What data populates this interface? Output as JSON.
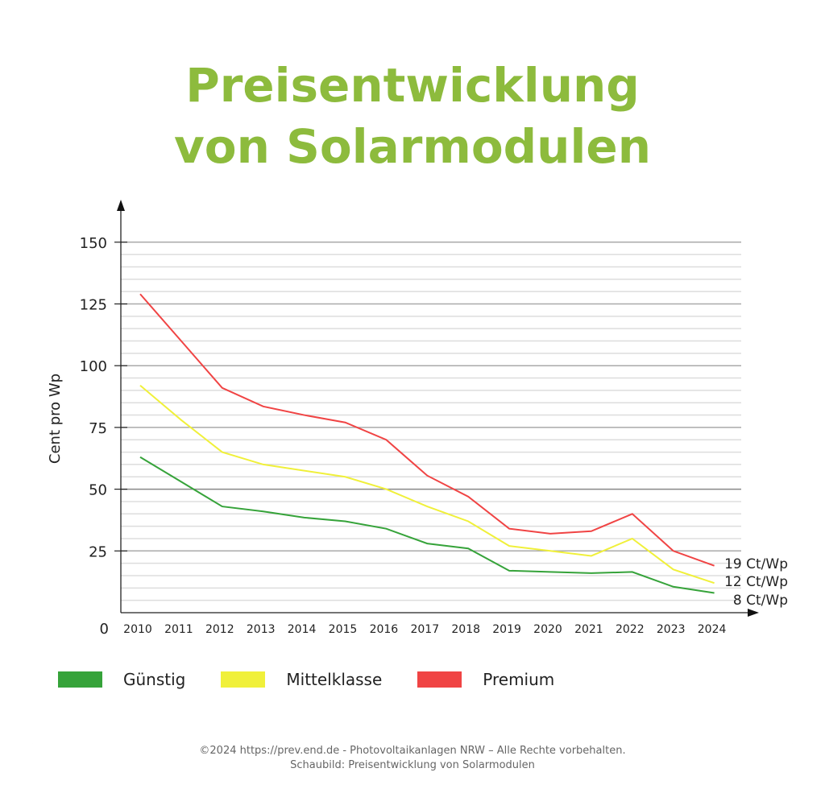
{
  "title_line1": "Preisentwicklung",
  "title_line2": "von Solarmodulen",
  "chart_data": {
    "type": "line",
    "title": "Preisentwicklung von Solarmodulen",
    "xlabel": "",
    "ylabel": "Cent pro Wp",
    "ylim": [
      0,
      160
    ],
    "yticks": [
      0,
      25,
      50,
      75,
      100,
      125,
      150
    ],
    "minor_grid_step": 5,
    "grid": true,
    "legend_placement": "bottom",
    "categories": [
      "2010",
      "2011",
      "2012",
      "2013",
      "2014",
      "2015",
      "2016",
      "2017",
      "2018",
      "2019",
      "2020",
      "2021",
      "2022",
      "2023",
      "2024"
    ],
    "series": [
      {
        "name": "Günstig",
        "color": "#36a33a",
        "values": [
          63,
          53,
          43,
          41,
          38.5,
          37,
          34,
          28,
          26,
          17,
          16.5,
          16,
          16.5,
          10.5,
          8
        ],
        "end_label": "8 Ct/Wp"
      },
      {
        "name": "Mittelklasse",
        "color": "#f0f03a",
        "values": [
          92,
          78,
          65,
          60,
          57.5,
          55,
          50,
          43,
          37,
          27,
          25,
          23,
          30,
          17.5,
          12
        ],
        "end_label": "12 Ct/Wp"
      },
      {
        "name": "Premium",
        "color": "#f04444",
        "values": [
          129,
          110,
          91,
          83.5,
          80,
          77,
          70,
          55.5,
          47,
          34,
          32,
          33,
          40,
          25,
          19
        ],
        "end_label": "19 Ct/Wp"
      }
    ]
  },
  "footer": {
    "line1": "©2024 https://prev.end.de - Photovoltaikanlagen NRW – Alle Rechte vorbehalten.",
    "line2": "Schaubild: Preisentwicklung von Solarmodulen"
  }
}
